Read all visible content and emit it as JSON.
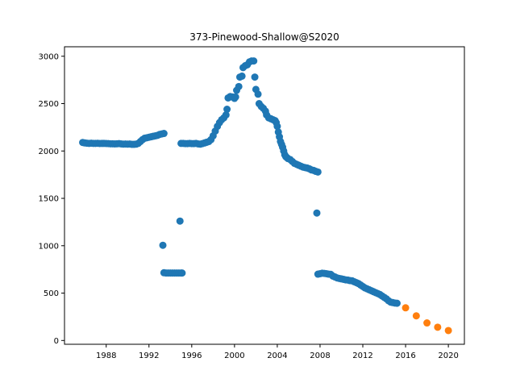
{
  "chart_data": {
    "type": "scatter",
    "title": "373-Pinewood-Shallow@S2020",
    "xlabel": "",
    "ylabel": "",
    "xlim": [
      1984.1,
      2021.5
    ],
    "ylim": [
      -40,
      3100
    ],
    "x_ticks": [
      1988,
      1992,
      1996,
      2000,
      2004,
      2008,
      2012,
      2016,
      2020
    ],
    "y_ticks": [
      0,
      500,
      1000,
      1500,
      2000,
      2500,
      3000
    ],
    "grid": false,
    "legend": "none",
    "series": [
      {
        "color": "#1f77b4",
        "points": [
          [
            1985.8,
            2090
          ],
          [
            1986.0,
            2085
          ],
          [
            1986.2,
            2082
          ],
          [
            1986.4,
            2080
          ],
          [
            1986.6,
            2082
          ],
          [
            1986.8,
            2080
          ],
          [
            1987.0,
            2080
          ],
          [
            1987.2,
            2081
          ],
          [
            1987.4,
            2079
          ],
          [
            1987.6,
            2080
          ],
          [
            1987.8,
            2080
          ],
          [
            1988.0,
            2079
          ],
          [
            1988.2,
            2078
          ],
          [
            1988.4,
            2076
          ],
          [
            1988.6,
            2076
          ],
          [
            1988.8,
            2075
          ],
          [
            1989.0,
            2076
          ],
          [
            1989.2,
            2078
          ],
          [
            1989.4,
            2075
          ],
          [
            1989.6,
            2073
          ],
          [
            1989.8,
            2074
          ],
          [
            1990.0,
            2072
          ],
          [
            1990.2,
            2074
          ],
          [
            1990.4,
            2070
          ],
          [
            1990.6,
            2070
          ],
          [
            1990.8,
            2072
          ],
          [
            1991.0,
            2080
          ],
          [
            1991.2,
            2100
          ],
          [
            1991.4,
            2120
          ],
          [
            1991.6,
            2135
          ],
          [
            1991.8,
            2140
          ],
          [
            1992.0,
            2145
          ],
          [
            1992.2,
            2150
          ],
          [
            1992.4,
            2155
          ],
          [
            1992.6,
            2160
          ],
          [
            1992.8,
            2165
          ],
          [
            1993.0,
            2175
          ],
          [
            1993.2,
            2180
          ],
          [
            1993.4,
            2185
          ],
          [
            1993.3,
            1005
          ],
          [
            1993.4,
            715
          ],
          [
            1993.6,
            712
          ],
          [
            1993.8,
            712
          ],
          [
            1994.0,
            712
          ],
          [
            1994.2,
            712
          ],
          [
            1994.4,
            712
          ],
          [
            1994.6,
            712
          ],
          [
            1994.8,
            712
          ],
          [
            1995.0,
            712
          ],
          [
            1995.1,
            712
          ],
          [
            1994.9,
            1260
          ],
          [
            1995.0,
            2080
          ],
          [
            1995.2,
            2080
          ],
          [
            1995.4,
            2078
          ],
          [
            1995.6,
            2078
          ],
          [
            1995.8,
            2080
          ],
          [
            1996.0,
            2078
          ],
          [
            1996.2,
            2078
          ],
          [
            1996.4,
            2080
          ],
          [
            1996.6,
            2075
          ],
          [
            1996.8,
            2072
          ],
          [
            1997.0,
            2078
          ],
          [
            1997.2,
            2085
          ],
          [
            1997.4,
            2092
          ],
          [
            1997.6,
            2100
          ],
          [
            1997.8,
            2120
          ],
          [
            1998.0,
            2160
          ],
          [
            1998.2,
            2210
          ],
          [
            1998.4,
            2260
          ],
          [
            1998.6,
            2300
          ],
          [
            1998.8,
            2330
          ],
          [
            1999.0,
            2350
          ],
          [
            1999.2,
            2380
          ],
          [
            1999.3,
            2440
          ],
          [
            1999.4,
            2560
          ],
          [
            1999.6,
            2575
          ],
          [
            1999.8,
            2570
          ],
          [
            2000.0,
            2555
          ],
          [
            2000.1,
            2570
          ],
          [
            2000.2,
            2640
          ],
          [
            2000.4,
            2680
          ],
          [
            2000.5,
            2780
          ],
          [
            2000.7,
            2790
          ],
          [
            2000.8,
            2880
          ],
          [
            2001.0,
            2900
          ],
          [
            2001.2,
            2910
          ],
          [
            2001.4,
            2940
          ],
          [
            2001.6,
            2950
          ],
          [
            2001.8,
            2950
          ],
          [
            2001.9,
            2780
          ],
          [
            2002.0,
            2650
          ],
          [
            2002.2,
            2600
          ],
          [
            2002.3,
            2500
          ],
          [
            2002.5,
            2470
          ],
          [
            2002.7,
            2450
          ],
          [
            2002.9,
            2420
          ],
          [
            2003.0,
            2380
          ],
          [
            2003.2,
            2350
          ],
          [
            2003.4,
            2340
          ],
          [
            2003.6,
            2330
          ],
          [
            2003.8,
            2320
          ],
          [
            2003.9,
            2300
          ],
          [
            2004.0,
            2260
          ],
          [
            2004.1,
            2200
          ],
          [
            2004.2,
            2150
          ],
          [
            2004.3,
            2100
          ],
          [
            2004.4,
            2070
          ],
          [
            2004.5,
            2040
          ],
          [
            2004.6,
            2000
          ],
          [
            2004.7,
            1960
          ],
          [
            2004.8,
            1940
          ],
          [
            2004.9,
            1930
          ],
          [
            2005.0,
            1920
          ],
          [
            2005.2,
            1910
          ],
          [
            2005.4,
            1890
          ],
          [
            2005.6,
            1870
          ],
          [
            2005.8,
            1860
          ],
          [
            2006.0,
            1850
          ],
          [
            2006.2,
            1840
          ],
          [
            2006.4,
            1830
          ],
          [
            2006.6,
            1825
          ],
          [
            2006.8,
            1820
          ],
          [
            2007.0,
            1812
          ],
          [
            2007.2,
            1800
          ],
          [
            2007.4,
            1795
          ],
          [
            2007.6,
            1785
          ],
          [
            2007.8,
            1778
          ],
          [
            2007.7,
            1345
          ],
          [
            2007.8,
            700
          ],
          [
            2008.0,
            705
          ],
          [
            2008.2,
            710
          ],
          [
            2008.4,
            708
          ],
          [
            2008.6,
            705
          ],
          [
            2008.8,
            700
          ],
          [
            2009.0,
            698
          ],
          [
            2009.2,
            680
          ],
          [
            2009.4,
            670
          ],
          [
            2009.6,
            660
          ],
          [
            2009.8,
            655
          ],
          [
            2010.0,
            650
          ],
          [
            2010.2,
            645
          ],
          [
            2010.4,
            640
          ],
          [
            2010.6,
            638
          ],
          [
            2010.8,
            632
          ],
          [
            2011.0,
            630
          ],
          [
            2011.2,
            620
          ],
          [
            2011.4,
            610
          ],
          [
            2011.6,
            600
          ],
          [
            2011.8,
            585
          ],
          [
            2012.0,
            570
          ],
          [
            2012.2,
            555
          ],
          [
            2012.4,
            545
          ],
          [
            2012.6,
            535
          ],
          [
            2012.8,
            525
          ],
          [
            2013.0,
            515
          ],
          [
            2013.2,
            505
          ],
          [
            2013.4,
            495
          ],
          [
            2013.6,
            485
          ],
          [
            2013.8,
            470
          ],
          [
            2014.0,
            455
          ],
          [
            2014.2,
            440
          ],
          [
            2014.4,
            420
          ],
          [
            2014.6,
            405
          ],
          [
            2014.8,
            400
          ],
          [
            2015.0,
            395
          ],
          [
            2015.2,
            393
          ]
        ]
      },
      {
        "color": "#ff7f0e",
        "points": [
          [
            2016,
            345
          ],
          [
            2017,
            260
          ],
          [
            2018,
            185
          ],
          [
            2019,
            140
          ],
          [
            2020,
            105
          ]
        ]
      }
    ]
  }
}
